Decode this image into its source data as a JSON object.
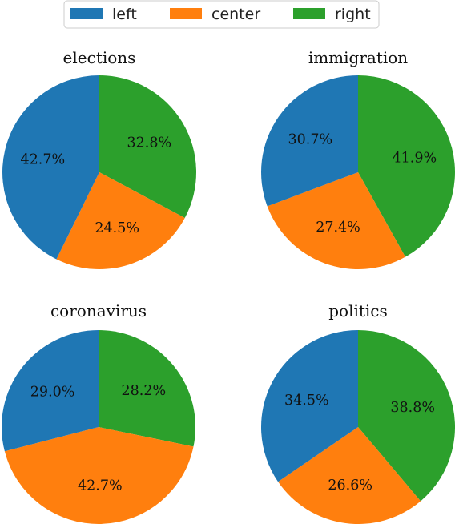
{
  "colors": {
    "left": "#1f77b4",
    "center": "#ff7f0e",
    "right": "#2ca02c"
  },
  "legend": {
    "placement": "top-center",
    "entries": [
      {
        "key": "left",
        "label": "left"
      },
      {
        "key": "center",
        "label": "center"
      },
      {
        "key": "right",
        "label": "right"
      }
    ]
  },
  "chart_data": [
    {
      "type": "pie",
      "title": "elections",
      "categories": [
        "left",
        "center",
        "right"
      ],
      "values": [
        42.7,
        24.5,
        32.8
      ],
      "labels": [
        "42.7%",
        "24.5%",
        "32.8%"
      ]
    },
    {
      "type": "pie",
      "title": "immigration",
      "categories": [
        "left",
        "center",
        "right"
      ],
      "values": [
        30.7,
        27.4,
        41.9
      ],
      "labels": [
        "30.7%",
        "27.4%",
        "41.9%"
      ]
    },
    {
      "type": "pie",
      "title": "coronavirus",
      "categories": [
        "left",
        "center",
        "right"
      ],
      "values": [
        29.0,
        42.7,
        28.2
      ],
      "labels": [
        "29.0%",
        "42.7%",
        "28.2%"
      ]
    },
    {
      "type": "pie",
      "title": "politics",
      "categories": [
        "left",
        "center",
        "right"
      ],
      "values": [
        34.5,
        26.6,
        38.8
      ],
      "labels": [
        "34.5%",
        "26.6%",
        "38.8%"
      ]
    }
  ]
}
